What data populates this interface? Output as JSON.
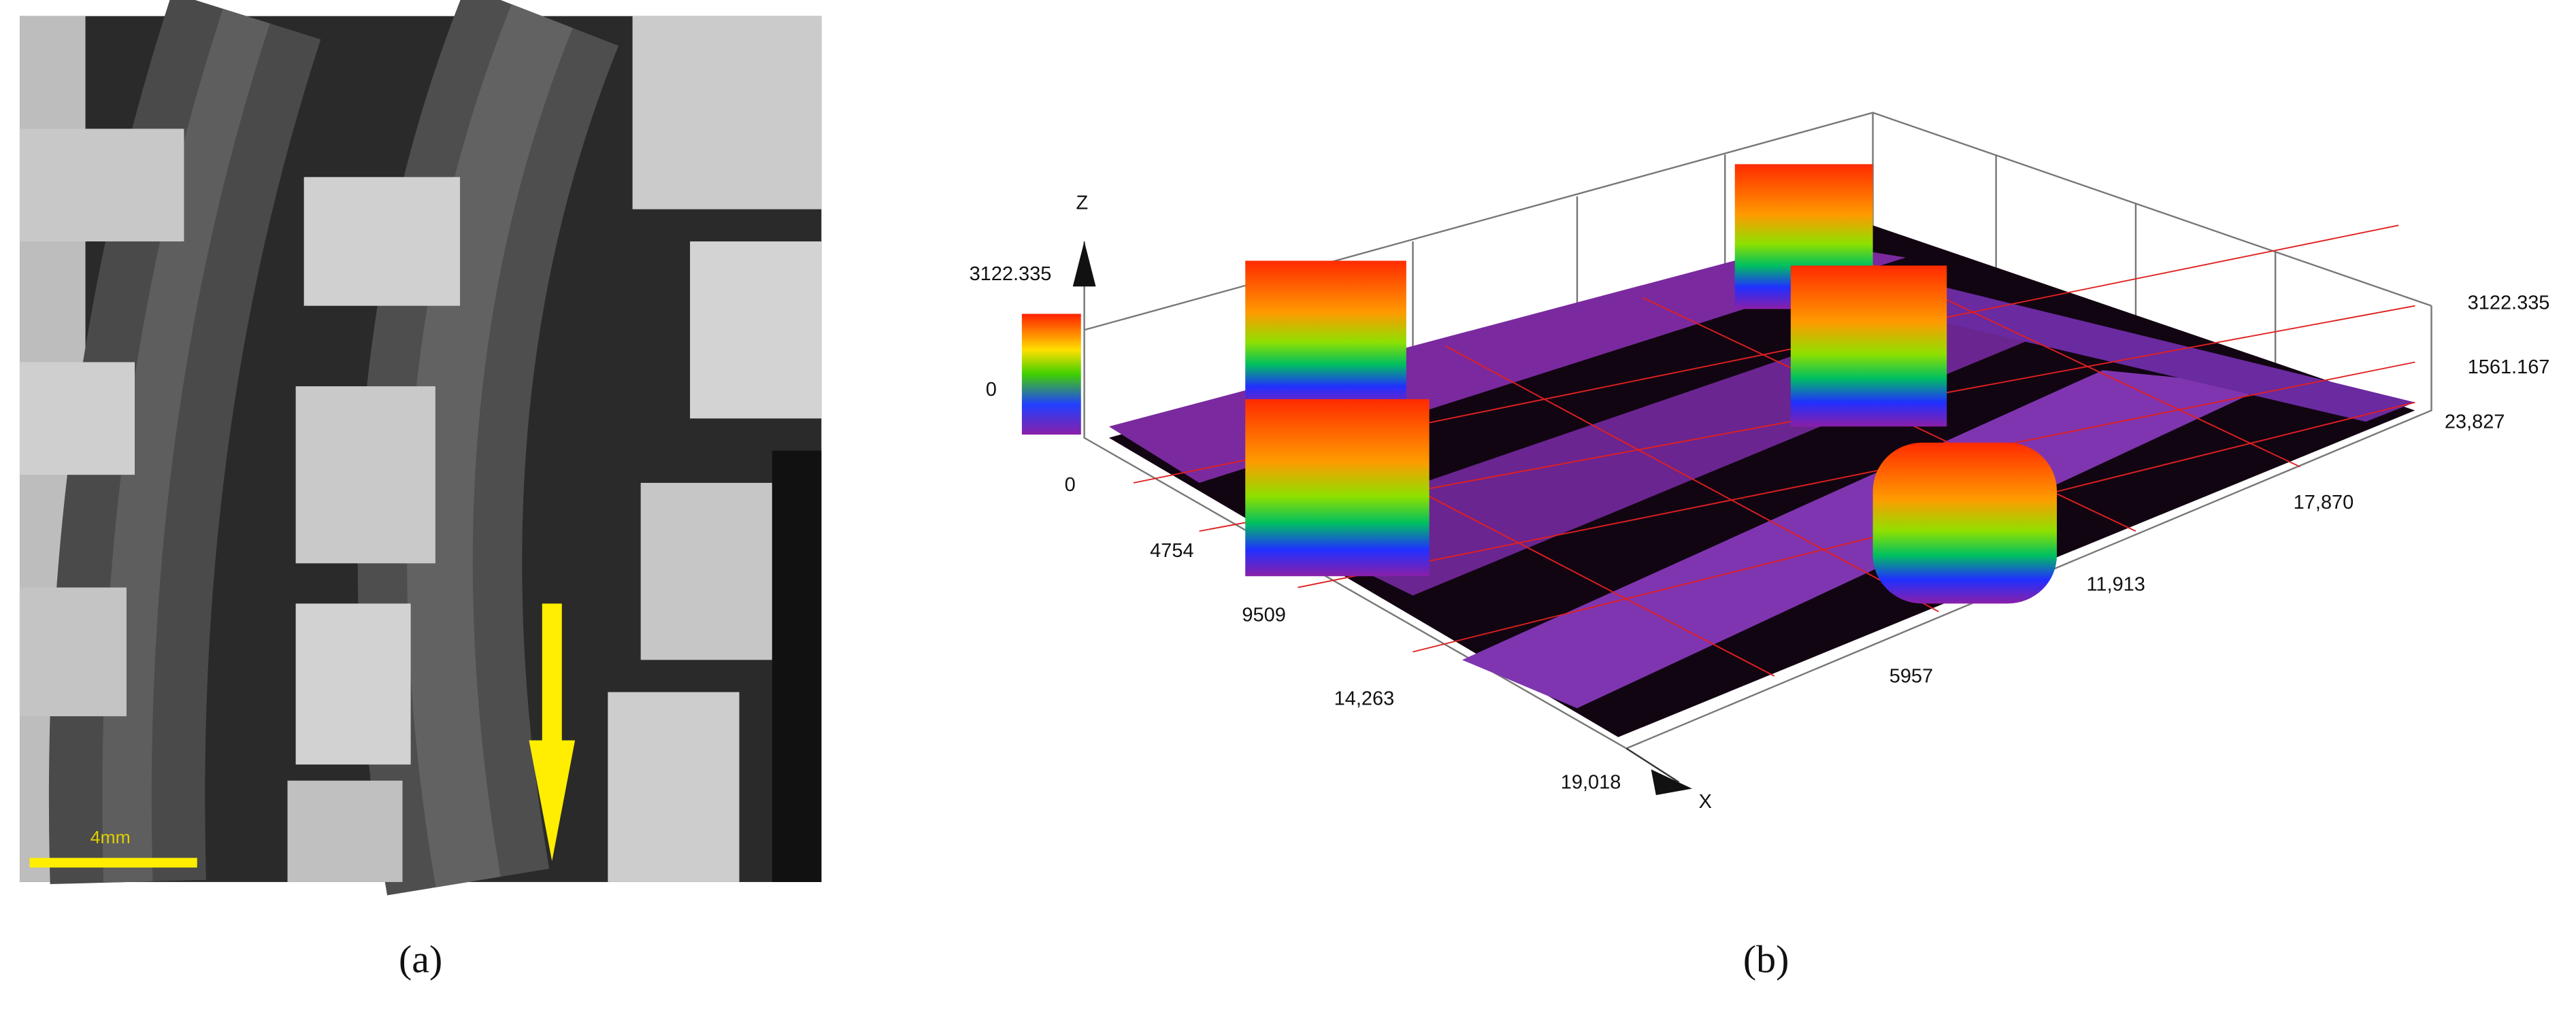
{
  "panels": [
    {
      "caption": "(a)",
      "scale_bar_label": "4mm"
    },
    {
      "caption": "(b)",
      "z_axis_label": "Z",
      "x_axis_label": "X",
      "colorbar_labels": [
        "3122.335",
        "0"
      ],
      "origin_label": "0",
      "x_tick_labels": [
        "4754",
        "9509",
        "14,263",
        "19,018"
      ],
      "y_tick_labels": [
        "5957",
        "11,913",
        "17,870",
        "23,827"
      ],
      "z_tick_labels": [
        "3122.335",
        "1561.167"
      ]
    }
  ]
}
